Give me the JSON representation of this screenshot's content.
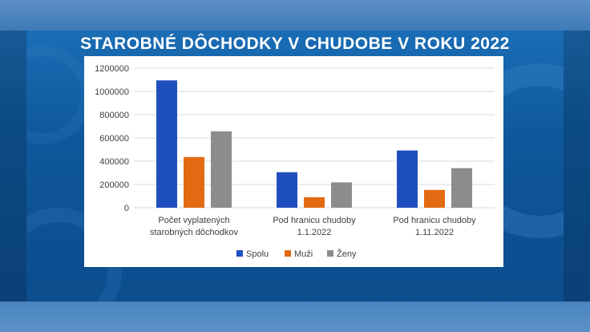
{
  "chart_data": {
    "type": "bar",
    "title": "STAROBNÉ DÔCHODKY V CHUDOBE V ROKU 2022",
    "categories": [
      [
        "Počet vyplatených",
        "starobných dôchodkov"
      ],
      [
        "Pod hranicu chudoby",
        "1.1.2022"
      ],
      [
        "Pod hranicu chudoby",
        "1.11.2022"
      ]
    ],
    "series": [
      {
        "name": "Spolu",
        "values": [
          1095000,
          305000,
          492000
        ],
        "color": "#1f4fbf"
      },
      {
        "name": "Muži",
        "values": [
          436000,
          90000,
          153000
        ],
        "color": "#e26a12"
      },
      {
        "name": "Ženy",
        "values": [
          657000,
          218000,
          340000
        ],
        "color": "#8c8c8c"
      }
    ],
    "yticks": [
      "0",
      "200000",
      "400000",
      "600000",
      "800000",
      "1000000",
      "1200000"
    ],
    "ylim": [
      0,
      1200000
    ],
    "grid": true,
    "legend_position": "bottom"
  }
}
